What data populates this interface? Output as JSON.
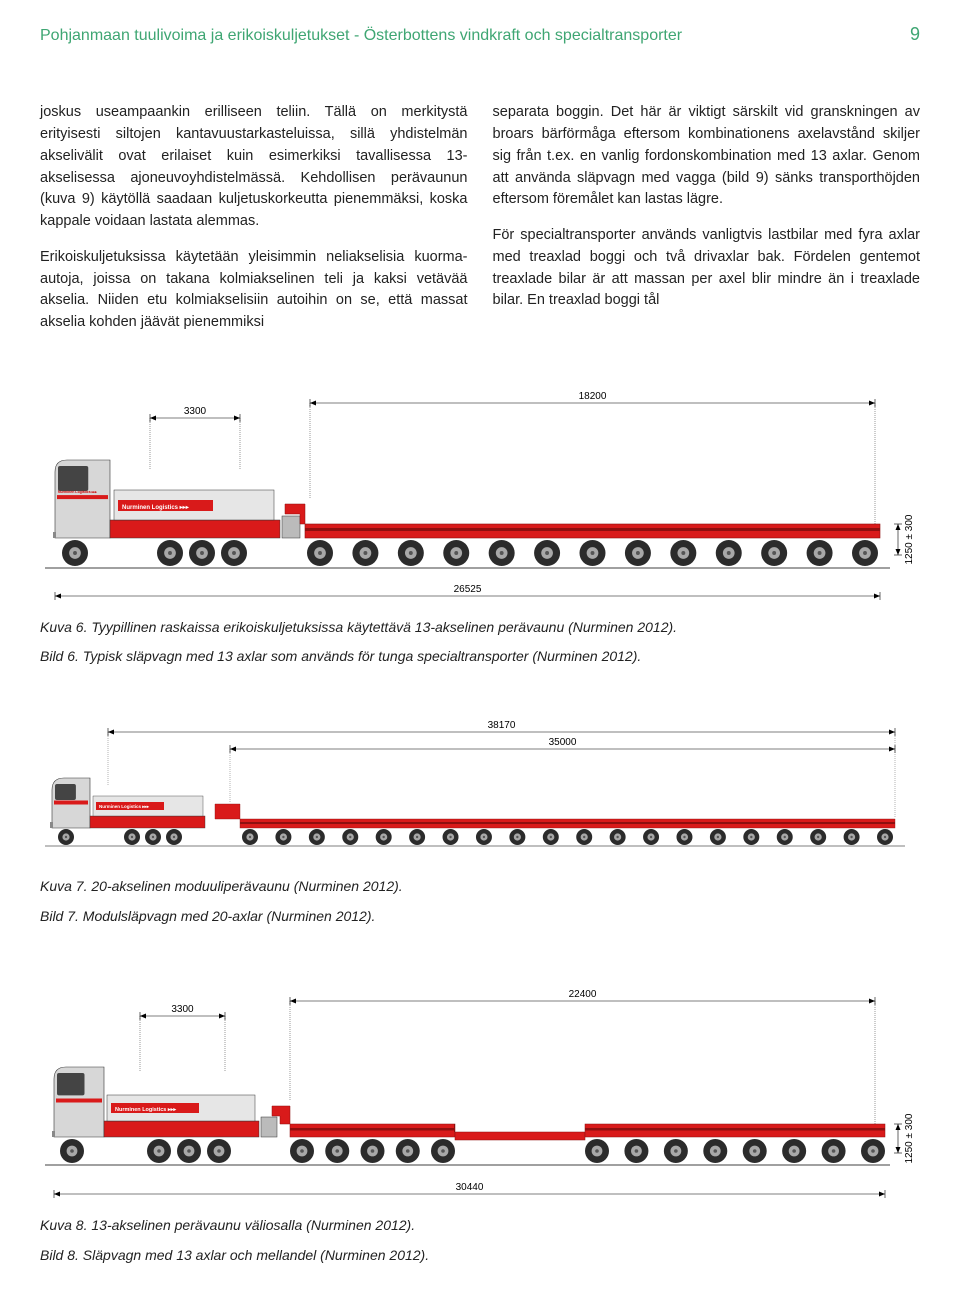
{
  "header": {
    "title": "Pohjanmaan tuulivoima ja erikoiskuljetukset  -  Österbottens vindkraft och specialtransporter",
    "page_number": "9"
  },
  "columns": {
    "left": [
      "joskus useampaankin erilliseen teliin. Tällä on merkitystä erityisesti siltojen kantavuustarkasteluissa, sillä yhdistelmän akselivälit ovat erilaiset kuin esimerkiksi tavallisessa 13-akselisessa ajoneuvoyhdistelmässä. Kehdollisen perävaunun (kuva 9) käytöllä saadaan kuljetuskorkeutta pienemmäksi, koska kappale voidaan lastata alemmas.",
      "Erikoiskuljetuksissa käytetään yleisimmin neliakselisia kuorma-autoja, joissa on takana kolmiakselinen teli ja kaksi vetävää akselia. Niiden etu kolmiakselisiin autoihin on se, että massat akselia kohden jäävät pienemmiksi"
    ],
    "right": [
      "separata boggin. Det här är viktigt särskilt vid granskningen av broars bärförmåga eftersom kombinationens axelavstånd skiljer sig från t.ex. en vanlig fordonskombination med 13 axlar. Genom att använda släpvagn med vagga (bild 9) sänks transporthöjden eftersom föremålet kan lastas lägre.",
      "För specialtransporter används vanligtvis lastbilar med fyra axlar med treaxlad boggi och två drivaxlar bak. Fördelen gentemot treaxlade bilar är att massan per axel blir mindre än i treaxlade bilar. En treaxlad boggi tål"
    ]
  },
  "figure6": {
    "dims": {
      "cab": "3300",
      "trailer": "18200",
      "total": "26525",
      "height": "1250  ±  300"
    },
    "label_cargo": "Nurminen Logistics ▸▸▸",
    "label_cab": "Nurminen Logistics ▸▸▸",
    "front_axles": 1,
    "rear_axles": 3,
    "trailer_axles": 13,
    "colors": {
      "red": "#d91a1a",
      "dark_red": "#8e0f0f",
      "cab_grey": "#d7d7d7",
      "wheel_dark": "#2b2b2b",
      "wheel_hub": "#a8a8a8",
      "cargo_grey": "#e6e6e6",
      "outline": "#333"
    },
    "caption_fi": "Kuva 6. Tyypillinen raskaissa erikoiskuljetuksissa käytettävä 13-akselinen perävaunu (Nurminen 2012).",
    "caption_sv": "Bild 6. Typisk släpvagn med 13 axlar som används för tunga specialtransporter (Nurminen 2012)."
  },
  "figure7": {
    "dims": {
      "top1": "38170",
      "top2": "35000"
    },
    "label_cab": "Nurminen Logistics ▸▸▸",
    "label_cargo": "Nurminen Logistics ▸▸▸",
    "front_axles": 1,
    "rear_axles": 3,
    "trailer_axles": 20,
    "colors": {
      "red": "#d91a1a",
      "dark_red": "#8e0f0f",
      "cab_grey": "#d7d7d7",
      "wheel_dark": "#2b2b2b",
      "wheel_hub": "#a8a8a8",
      "cargo_grey": "#e6e6e6",
      "outline": "#333"
    },
    "caption_fi": "Kuva 7. 20-akselinen moduuliperävaunu (Nurminen 2012).",
    "caption_sv": "Bild 7. Modulsläpvagn med 20-axlar (Nurminen 2012)."
  },
  "figure8": {
    "dims": {
      "cab": "3300",
      "trailer": "22400",
      "total": "30440",
      "height": "1250  ±  300"
    },
    "label_cab": "Nurminen Logistics ▸▸▸",
    "label_cargo": "Nurminen Logistics ▸▸▸",
    "front_axles": 1,
    "rear_axles": 3,
    "trailer_front_axles": 5,
    "trailer_rear_axles": 8,
    "colors": {
      "red": "#d91a1a",
      "dark_red": "#8e0f0f",
      "cab_grey": "#d7d7d7",
      "wheel_dark": "#2b2b2b",
      "wheel_hub": "#a8a8a8",
      "cargo_grey": "#e6e6e6",
      "outline": "#333"
    },
    "caption_fi": "Kuva 8. 13-akselinen perävaunu väliosalla (Nurminen 2012).",
    "caption_sv": "Bild 8. Släpvagn med 13 axlar och mellandel (Nurminen 2012)."
  }
}
